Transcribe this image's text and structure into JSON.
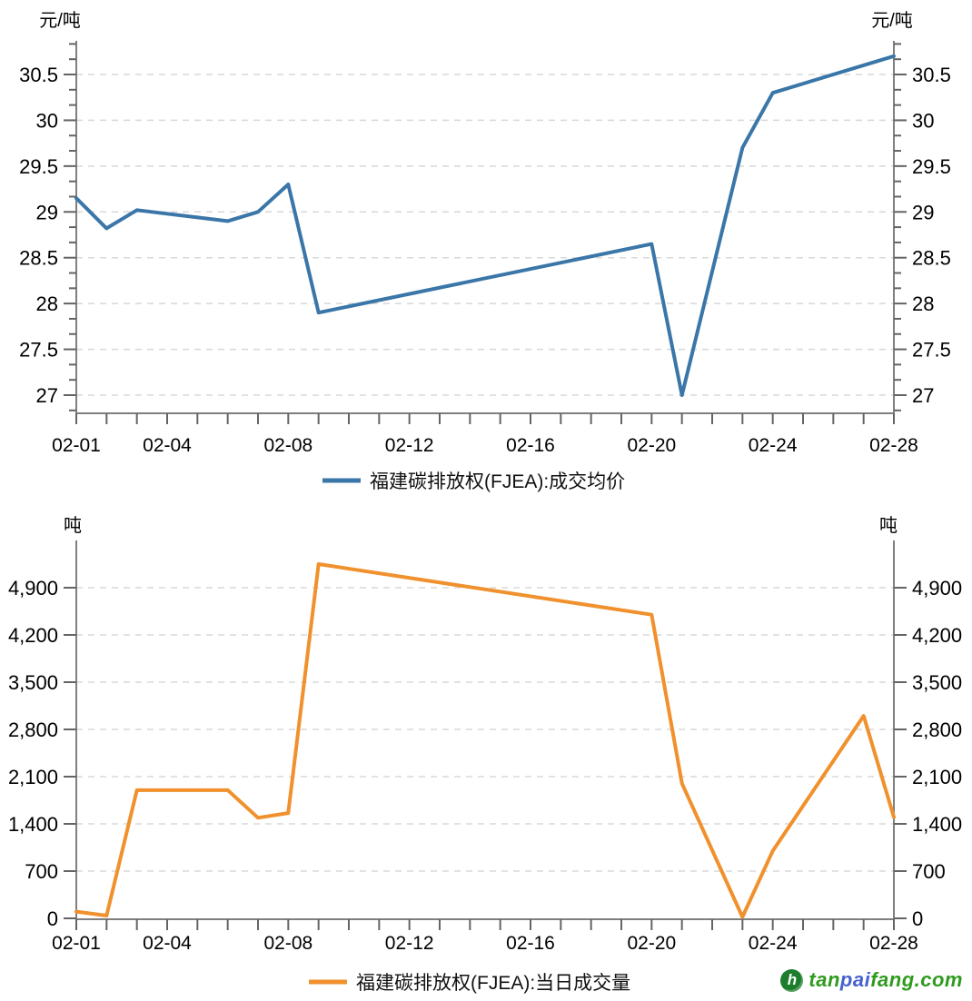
{
  "chart_data": [
    {
      "type": "line",
      "series_name": "福建碳排放权(FJEA):成交均价",
      "unit": "元/吨",
      "color": "#3a76a8",
      "x": [
        "02-01",
        "02-02",
        "02-03",
        "02-06",
        "02-07",
        "02-08",
        "02-09",
        "02-20",
        "02-21",
        "02-23",
        "02-24",
        "02-28"
      ],
      "y": [
        29.15,
        28.82,
        29.02,
        28.9,
        29.0,
        29.3,
        27.9,
        28.65,
        27.0,
        29.7,
        30.3,
        30.7
      ],
      "ylim": [
        27,
        30.5
      ],
      "ytick_values": [
        27,
        27.5,
        28,
        28.5,
        29,
        29.5,
        30,
        30.5
      ],
      "ytick_labels": [
        "27",
        "27.5",
        "28",
        "28.5",
        "29",
        "29.5",
        "30",
        "30.5"
      ],
      "xtick_labels": [
        "02-01",
        "02-04",
        "02-08",
        "02-12",
        "02-16",
        "02-20",
        "02-24",
        "02-28"
      ],
      "x_range_days": [
        "02-01",
        "02-28"
      ],
      "grid": "horizontal-dashed",
      "axis_sides": "left-and-right",
      "legend_position": "bottom-center"
    },
    {
      "type": "line",
      "series_name": "福建碳排放权(FJEA):当日成交量",
      "unit": "吨",
      "color": "#f0912d",
      "x": [
        "02-01",
        "02-02",
        "02-03",
        "02-06",
        "02-07",
        "02-08",
        "02-09",
        "02-20",
        "02-21",
        "02-23",
        "02-24",
        "02-27",
        "02-28"
      ],
      "y": [
        100,
        40,
        1900,
        1900,
        1490,
        1560,
        5250,
        4500,
        2000,
        20,
        1000,
        3000,
        1500
      ],
      "ylim": [
        0,
        4900
      ],
      "ytick_values": [
        0,
        700,
        1400,
        2100,
        2800,
        3500,
        4200,
        4900
      ],
      "ytick_labels": [
        "0",
        "700",
        "1,400",
        "2,100",
        "2,800",
        "3,500",
        "4,200",
        "4,900"
      ],
      "xtick_labels": [
        "02-01",
        "02-04",
        "02-08",
        "02-12",
        "02-16",
        "02-20",
        "02-24",
        "02-28"
      ],
      "x_range_days": [
        "02-01",
        "02-28"
      ],
      "grid": "horizontal-dashed",
      "axis_sides": "left-and-right",
      "legend_position": "bottom-center"
    }
  ],
  "watermark": {
    "icon": "green-circle-h-icon",
    "icon_letter": "h",
    "icon_color": "#1c7e2c",
    "parts": [
      {
        "text": "tan",
        "color": "#2f9b1e"
      },
      {
        "text": "pai",
        "color": "#4762cf"
      },
      {
        "text": "fang.com",
        "color": "#2f9b1e"
      }
    ]
  }
}
